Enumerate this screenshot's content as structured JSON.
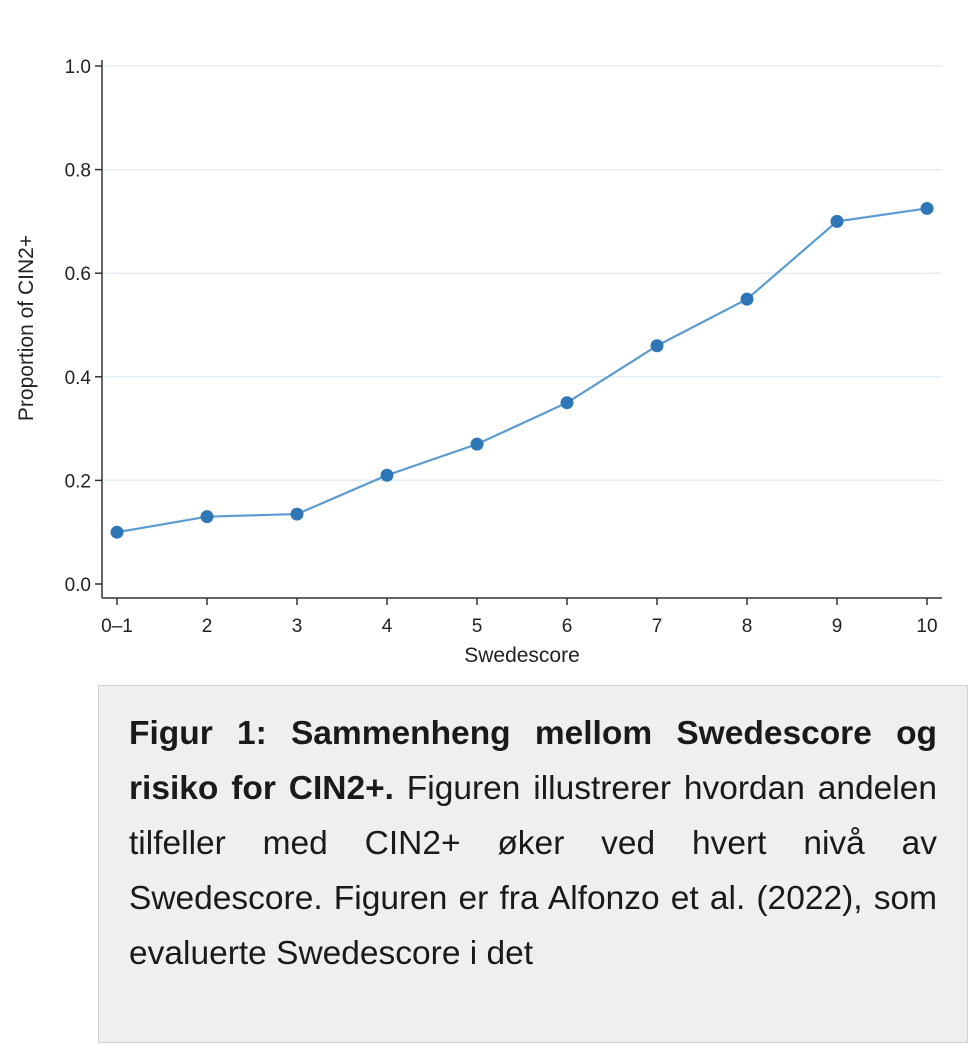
{
  "chart_data": {
    "type": "line",
    "categories": [
      "0–1",
      "2",
      "3",
      "4",
      "5",
      "6",
      "7",
      "8",
      "9",
      "10"
    ],
    "series": [
      {
        "values": [
          0.1,
          0.13,
          0.135,
          0.21,
          0.27,
          0.35,
          0.46,
          0.55,
          0.7,
          0.725
        ]
      }
    ],
    "title": "",
    "xlabel": "Swedescore",
    "ylabel": "Proportion of CIN2+",
    "ylim": [
      0.0,
      1.0
    ],
    "yticks": [
      "0.0",
      "0.2",
      "0.4",
      "0.6",
      "0.8",
      "1.0"
    ],
    "grid": "horizontal",
    "colors": {
      "series": "#2f76b6",
      "line": "#5b9bd0",
      "grid": "#e3edf5"
    }
  },
  "caption": {
    "bold": "Figur 1: Sammenheng mellom Swedescore og risiko for CIN2+.",
    "text": " Figuren illustrerer hvordan andelen tilfeller med CIN2+ øker ved hvert nivå av Swedescore. Figuren er fra Alfonzo et al. (2022), som evaluerte Swedescore i det"
  }
}
